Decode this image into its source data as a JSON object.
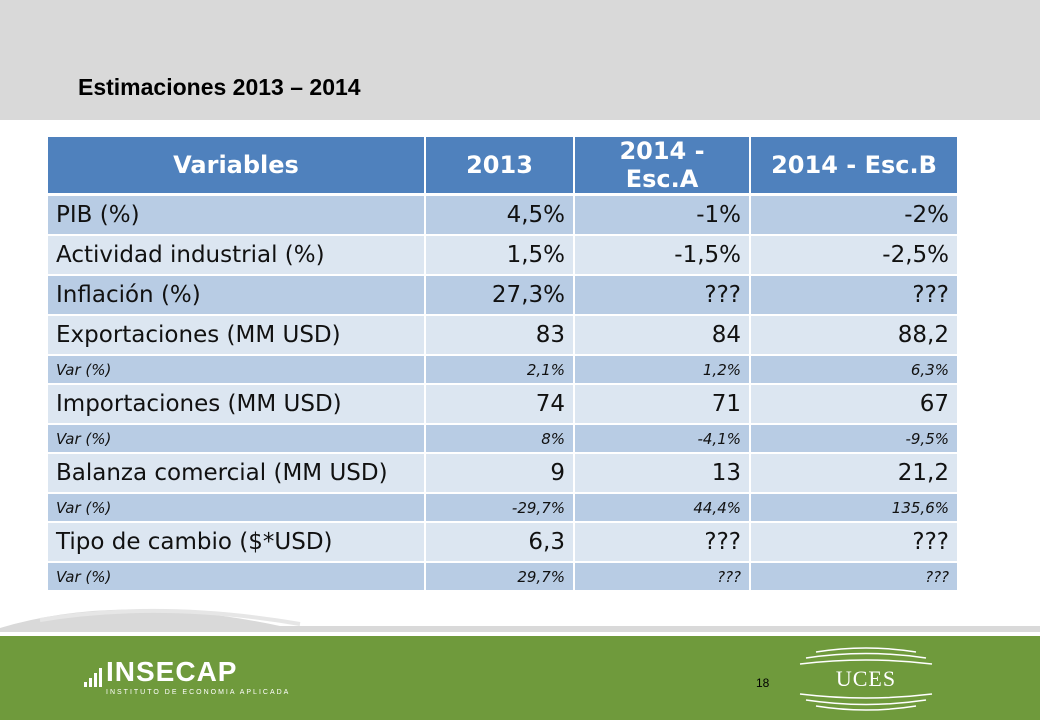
{
  "slide": {
    "title": "Estimaciones 2013 – 2014",
    "page_number": "18"
  },
  "table": {
    "headers": [
      "Variables",
      "2013",
      "2014 - Esc.A",
      "2014 - Esc.B"
    ],
    "rows": [
      {
        "kind": "main",
        "cells": [
          "PIB (%)",
          "4,5%",
          "-1%",
          "-2%"
        ]
      },
      {
        "kind": "main",
        "cells": [
          "Actividad industrial (%)",
          "1,5%",
          "-1,5%",
          "-2,5%"
        ]
      },
      {
        "kind": "main",
        "cells": [
          "Inflación (%)",
          "27,3%",
          "???",
          "???"
        ]
      },
      {
        "kind": "main",
        "cells": [
          "Exportaciones (MM USD)",
          "83",
          "84",
          "88,2"
        ]
      },
      {
        "kind": "sub",
        "cells": [
          "Var (%)",
          "2,1%",
          "1,2%",
          "6,3%"
        ]
      },
      {
        "kind": "main",
        "cells": [
          "Importaciones (MM USD)",
          "74",
          "71",
          "67"
        ]
      },
      {
        "kind": "sub",
        "cells": [
          "Var (%)",
          "8%",
          "-4,1%",
          "-9,5%"
        ]
      },
      {
        "kind": "main",
        "cells": [
          "Balanza comercial (MM USD)",
          "9",
          "13",
          "21,2"
        ]
      },
      {
        "kind": "sub",
        "cells": [
          "Var (%)",
          "-29,7%",
          "44,4%",
          "135,6%"
        ]
      },
      {
        "kind": "main",
        "cells": [
          "Tipo de cambio ($*USD)",
          "6,3",
          "???",
          "???"
        ]
      },
      {
        "kind": "sub",
        "cells": [
          "Var (%)",
          "29,7%",
          "???",
          "???"
        ]
      }
    ]
  },
  "logos": {
    "insecap_name": "INSECAP",
    "insecap_subtitle": "INSTITUTO DE ECONOMIA APLICADA",
    "uces_name": "UCES"
  },
  "colors": {
    "header_blue": "#4f81bd",
    "row_dark": "#b8cce4",
    "row_light": "#dce6f1",
    "footer_green": "#6f9a3c",
    "top_band_gray": "#d9d9d9"
  }
}
